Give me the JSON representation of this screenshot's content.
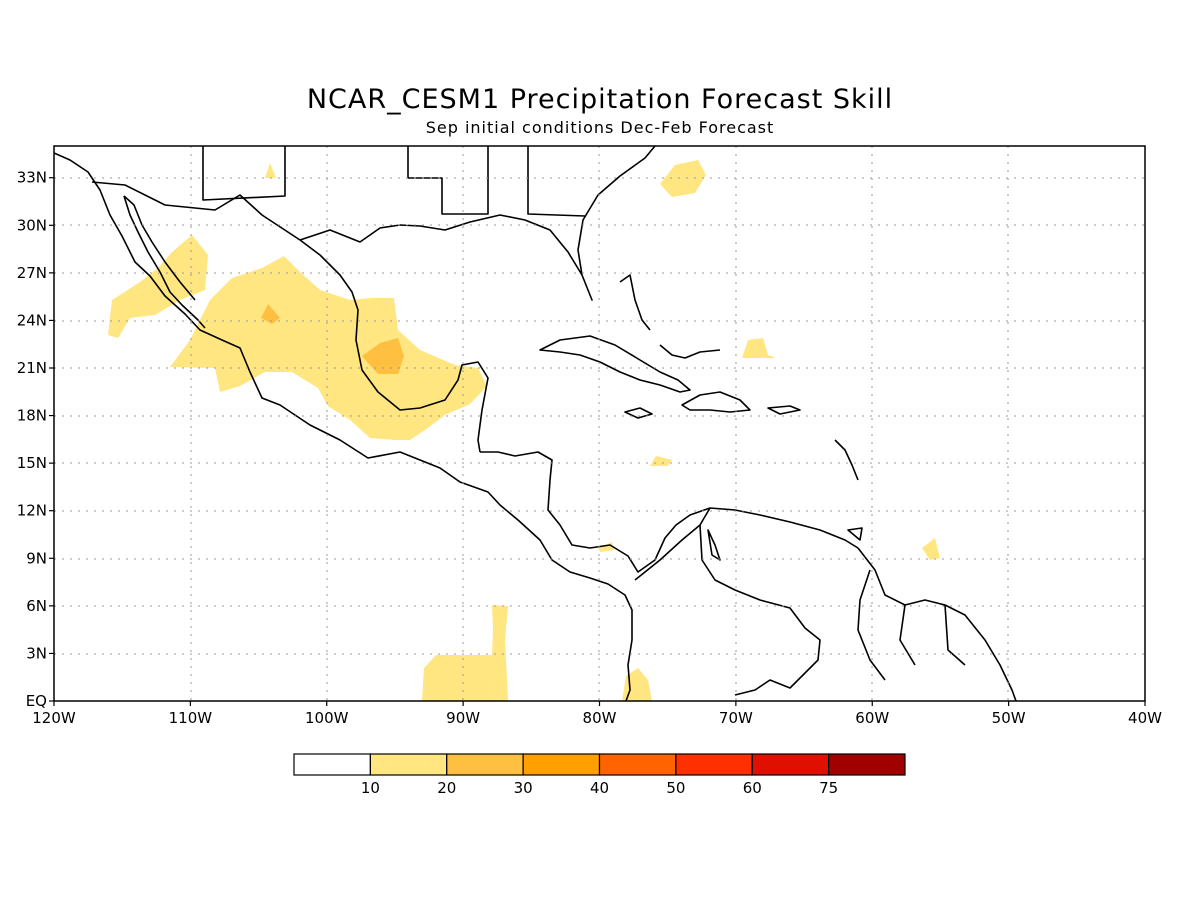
{
  "title": "NCAR_CESM1 Precipitation Forecast Skill",
  "subtitle": "Sep initial conditions  Dec-Feb Forecast",
  "map": {
    "lon_range": [
      -120,
      -40
    ],
    "lat_range": [
      0,
      35
    ],
    "lon_ticks": [
      "120W",
      "110W",
      "100W",
      "90W",
      "80W",
      "70W",
      "60W",
      "50W",
      "40W"
    ],
    "lat_ticks": [
      "EQ",
      "3N",
      "6N",
      "9N",
      "12N",
      "15N",
      "18N",
      "21N",
      "24N",
      "27N",
      "30N",
      "33N"
    ],
    "grid": "dotted"
  },
  "legend": {
    "labels": [
      "10",
      "20",
      "30",
      "40",
      "50",
      "60",
      "75"
    ],
    "colors": [
      "#ffffff",
      "#ffe680",
      "#ffbf40",
      "#ffa000",
      "#ff6400",
      "#ff3000",
      "#e01000",
      "#a00000"
    ]
  },
  "skill_colors": {
    "level_10": "#ffe680",
    "level_20": "#ffbf40"
  }
}
